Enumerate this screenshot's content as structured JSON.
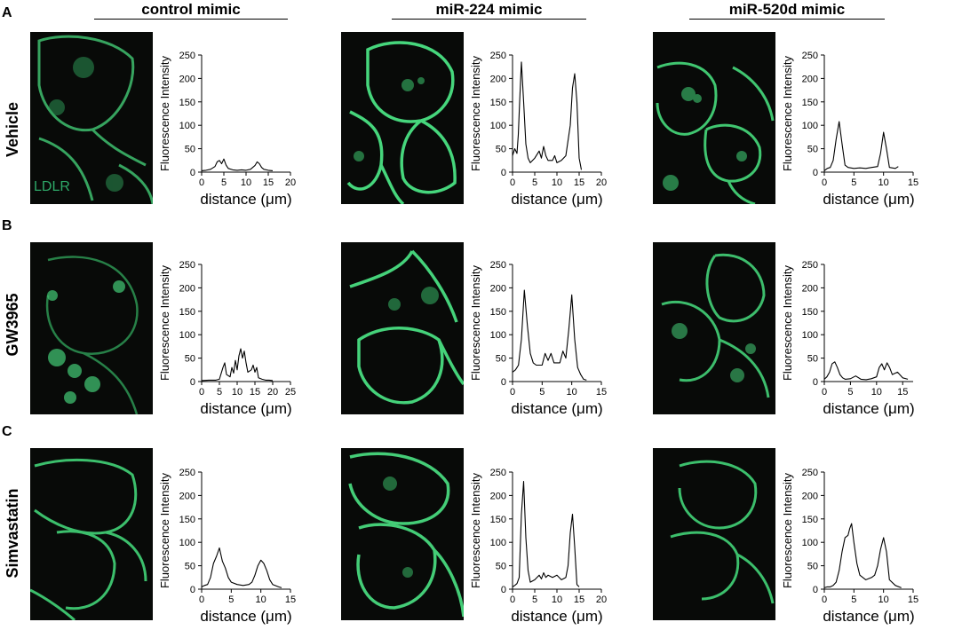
{
  "panel_letters": [
    "A",
    "B",
    "C"
  ],
  "columns": [
    "control mimic",
    "miR-224 mimic",
    "miR-520d mimic"
  ],
  "rows": [
    "Vehicle",
    "GW3965",
    "Simvastatin"
  ],
  "stain_label": "LDLR",
  "colors": {
    "stain": "#2ea868",
    "membrane": "#34c46e",
    "background": "#080a08",
    "trace": "#000000"
  },
  "chart_data": [
    {
      "type": "line",
      "row": "Vehicle",
      "column": "control mimic",
      "xlabel": "distance (μm)",
      "ylabel": "Fluorescence Intensity",
      "xlim": [
        0,
        20
      ],
      "ylim": [
        0,
        250
      ],
      "xticks": [
        0,
        5,
        10,
        15,
        20
      ],
      "yticks": [
        0,
        50,
        100,
        150,
        200,
        250
      ],
      "x": [
        0,
        1,
        2,
        3,
        3.5,
        4,
        4.5,
        5,
        5.5,
        6,
        7,
        8,
        9,
        10,
        11,
        12,
        12.5,
        13,
        13.5,
        14,
        15,
        16
      ],
      "y": [
        3,
        4,
        6,
        12,
        22,
        25,
        18,
        28,
        15,
        8,
        5,
        4,
        5,
        4,
        6,
        14,
        22,
        18,
        10,
        6,
        4,
        3
      ]
    },
    {
      "type": "line",
      "row": "Vehicle",
      "column": "miR-224 mimic",
      "xlabel": "distance (μm)",
      "ylabel": "Fluorescence Intensity",
      "xlim": [
        0,
        20
      ],
      "ylim": [
        0,
        250
      ],
      "xticks": [
        0,
        5,
        10,
        15,
        20
      ],
      "yticks": [
        0,
        50,
        100,
        150,
        200,
        250
      ],
      "x": [
        0,
        0.5,
        1,
        1.3,
        1.6,
        2,
        2.5,
        3,
        3.5,
        4,
        5,
        6,
        6.5,
        7,
        7.5,
        8,
        9,
        9.5,
        10,
        11,
        12,
        13,
        13.5,
        14,
        14.5,
        15,
        15.5
      ],
      "y": [
        35,
        50,
        40,
        80,
        150,
        235,
        150,
        60,
        30,
        20,
        30,
        45,
        30,
        55,
        35,
        25,
        25,
        35,
        20,
        25,
        35,
        100,
        180,
        210,
        150,
        30,
        5
      ]
    },
    {
      "type": "line",
      "row": "Vehicle",
      "column": "miR-520d mimic",
      "xlabel": "distance (μm)",
      "ylabel": "Fluorescence Intensity",
      "xlim": [
        0,
        15
      ],
      "ylim": [
        0,
        250
      ],
      "xticks": [
        0,
        5,
        10,
        15
      ],
      "yticks": [
        0,
        50,
        100,
        150,
        200,
        250
      ],
      "x": [
        0,
        0.5,
        1,
        1.5,
        2,
        2.5,
        3,
        3.5,
        4,
        5,
        6,
        7,
        8,
        9,
        9.5,
        10,
        10.5,
        11,
        12,
        12.5
      ],
      "y": [
        3,
        8,
        10,
        25,
        70,
        108,
        60,
        15,
        10,
        8,
        9,
        8,
        10,
        12,
        40,
        85,
        50,
        10,
        8,
        12
      ]
    },
    {
      "type": "line",
      "row": "GW3965",
      "column": "control mimic",
      "xlabel": "distance (μm)",
      "ylabel": "Fluorescence Intensity",
      "xlim": [
        0,
        25
      ],
      "ylim": [
        0,
        250
      ],
      "xticks": [
        0,
        5,
        10,
        15,
        20,
        25
      ],
      "yticks": [
        0,
        50,
        100,
        150,
        200,
        250
      ],
      "x": [
        0,
        2,
        4,
        5,
        6,
        6.5,
        7,
        8,
        8.5,
        9,
        9.5,
        10,
        10.5,
        11,
        11.5,
        12,
        12.5,
        13,
        14,
        14.5,
        15,
        15.5,
        16,
        17,
        18,
        19,
        20
      ],
      "y": [
        2,
        3,
        3,
        5,
        30,
        40,
        15,
        10,
        30,
        18,
        45,
        25,
        55,
        70,
        50,
        65,
        40,
        20,
        25,
        35,
        20,
        30,
        8,
        5,
        3,
        3,
        2
      ]
    },
    {
      "type": "line",
      "row": "GW3965",
      "column": "miR-224 mimic",
      "xlabel": "distance (μm)",
      "ylabel": "Fluorescence Intensity",
      "xlim": [
        0,
        15
      ],
      "ylim": [
        0,
        250
      ],
      "xticks": [
        0,
        5,
        10,
        15
      ],
      "yticks": [
        0,
        50,
        100,
        150,
        200,
        250
      ],
      "x": [
        0,
        0.5,
        1,
        1.5,
        2,
        2.5,
        3,
        3.5,
        4,
        5,
        5.5,
        6,
        6.5,
        7,
        8,
        8.5,
        9,
        9.5,
        10,
        10.5,
        11,
        11.5,
        12,
        12.5
      ],
      "y": [
        20,
        25,
        35,
        90,
        195,
        120,
        60,
        40,
        35,
        35,
        60,
        45,
        60,
        40,
        40,
        65,
        50,
        110,
        185,
        90,
        30,
        15,
        5,
        3
      ]
    },
    {
      "type": "line",
      "row": "GW3965",
      "column": "miR-520d mimic",
      "xlabel": "distance (μm)",
      "ylabel": "Fluorescence Intensity",
      "xlim": [
        0,
        17
      ],
      "ylim": [
        0,
        250
      ],
      "xticks": [
        0,
        5,
        10,
        15
      ],
      "yticks": [
        0,
        50,
        100,
        150,
        200,
        250
      ],
      "x": [
        0,
        0.5,
        1,
        1.5,
        2,
        2.5,
        3,
        3.5,
        4,
        5,
        6,
        7,
        8,
        9,
        10,
        10.5,
        11,
        11.5,
        12,
        12.5,
        13,
        14,
        15,
        16
      ],
      "y": [
        5,
        10,
        20,
        38,
        42,
        30,
        15,
        8,
        5,
        6,
        12,
        5,
        4,
        6,
        10,
        30,
        38,
        25,
        40,
        30,
        15,
        20,
        8,
        5
      ]
    },
    {
      "type": "line",
      "row": "Simvastatin",
      "column": "control mimic",
      "xlabel": "distance (μm)",
      "ylabel": "Fluorescence Intensity",
      "xlim": [
        0,
        15
      ],
      "ylim": [
        0,
        250
      ],
      "xticks": [
        0,
        5,
        10,
        15
      ],
      "yticks": [
        0,
        50,
        100,
        150,
        200,
        250
      ],
      "x": [
        0,
        0.5,
        1,
        1.5,
        2,
        2.5,
        3,
        3.5,
        4,
        4.5,
        5,
        6,
        7,
        8,
        8.5,
        9,
        9.5,
        10,
        10.5,
        11,
        11.5,
        12,
        13,
        13.5
      ],
      "y": [
        5,
        8,
        10,
        25,
        55,
        70,
        88,
        60,
        45,
        25,
        15,
        10,
        8,
        10,
        15,
        30,
        50,
        62,
        55,
        40,
        20,
        10,
        5,
        3
      ]
    },
    {
      "type": "line",
      "row": "Simvastatin",
      "column": "miR-224 mimic",
      "xlabel": "distance (μm)",
      "ylabel": "Fluorescence Intensity",
      "xlim": [
        0,
        20
      ],
      "ylim": [
        0,
        250
      ],
      "xticks": [
        0,
        5,
        10,
        15,
        20
      ],
      "yticks": [
        0,
        50,
        100,
        150,
        200,
        250
      ],
      "x": [
        0,
        0.5,
        1,
        1.5,
        2,
        2.5,
        3,
        3.5,
        4,
        5,
        6,
        6.5,
        7,
        7.5,
        8,
        9,
        10,
        11,
        12,
        12.5,
        13,
        13.5,
        14,
        14.5,
        15
      ],
      "y": [
        5,
        8,
        12,
        25,
        160,
        230,
        110,
        40,
        15,
        20,
        30,
        22,
        35,
        25,
        30,
        25,
        30,
        20,
        25,
        50,
        120,
        160,
        90,
        10,
        5
      ]
    },
    {
      "type": "line",
      "row": "Simvastatin",
      "column": "miR-520d mimic",
      "xlabel": "distance (μm)",
      "ylabel": "Fluorescence Intensity",
      "xlim": [
        0,
        15
      ],
      "ylim": [
        0,
        250
      ],
      "xticks": [
        0,
        5,
        10,
        15
      ],
      "yticks": [
        0,
        50,
        100,
        150,
        200,
        250
      ],
      "x": [
        0,
        0.5,
        1,
        1.5,
        2,
        2.5,
        3,
        3.5,
        4,
        4.3,
        4.6,
        5,
        5.5,
        6,
        7,
        8,
        8.5,
        9,
        9.5,
        10,
        10.5,
        11,
        12,
        13
      ],
      "y": [
        3,
        5,
        5,
        8,
        15,
        40,
        80,
        110,
        115,
        130,
        140,
        100,
        55,
        30,
        20,
        25,
        30,
        50,
        85,
        110,
        80,
        20,
        8,
        3
      ]
    }
  ]
}
